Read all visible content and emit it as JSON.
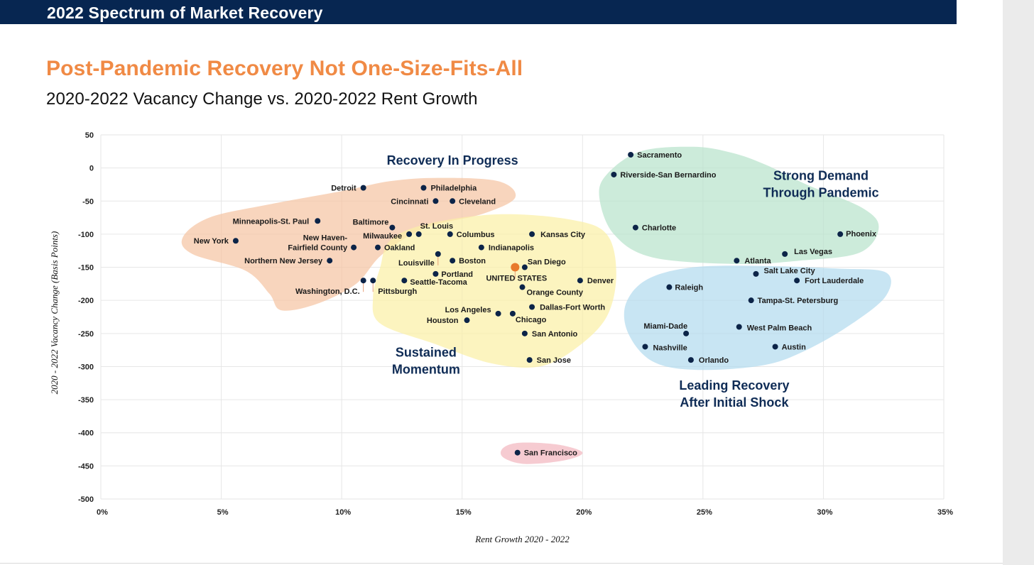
{
  "header": {
    "banner_title": "2022 Spectrum of Market Recovery",
    "headline": "Post-Pandemic Recovery Not One-Size-Fits-All",
    "subheadline": "2020-2022 Vacancy Change vs. 2020-2022 Rent Growth"
  },
  "colors": {
    "banner": "#072651",
    "headline": "#f08a45",
    "point": "#0c2448",
    "us_point": "#e87a2e",
    "region_text": "#0f2c56"
  },
  "chart_data": {
    "type": "scatter",
    "title": "2020-2022 Vacancy Change vs. 2020-2022 Rent Growth",
    "xlabel": "Rent Growth 2020 - 2022",
    "ylabel": "2020 - 2022 Vacancy Change (Basis Points)",
    "xlim": [
      0,
      35
    ],
    "ylim": [
      -500,
      50
    ],
    "x_ticks": [
      0,
      5,
      10,
      15,
      20,
      25,
      30,
      35
    ],
    "x_tick_labels": [
      "0%",
      "5%",
      "10%",
      "15%",
      "20%",
      "25%",
      "30%",
      "35%"
    ],
    "y_ticks": [
      50,
      0,
      -50,
      -100,
      -150,
      -200,
      -250,
      -300,
      -350,
      -400,
      -450,
      -500
    ],
    "y_tick_labels": [
      "50",
      "0",
      "-50",
      "-100",
      "-150",
      "-200",
      "-250",
      "-300",
      "-350",
      "-400",
      "-450",
      "-500"
    ],
    "grid": true,
    "regions": [
      {
        "name": "Recovery In Progress",
        "label_lines": [
          "Recovery In Progress"
        ],
        "color": "#f5c5a3"
      },
      {
        "name": "Sustained Momentum",
        "label_lines": [
          "Sustained",
          "Momentum"
        ],
        "color": "#fbf0a6"
      },
      {
        "name": "Strong Demand Through Pandemic",
        "label_lines": [
          "Strong Demand",
          "Through Pandemic"
        ],
        "color": "#b9e3cc"
      },
      {
        "name": "Leading Recovery After Initial Shock",
        "label_lines": [
          "Leading Recovery",
          "After Initial Shock"
        ],
        "color": "#b3dbee"
      },
      {
        "name": "San Francisco outlier",
        "label_lines": [],
        "color": "#f3b7bf"
      }
    ],
    "points": [
      {
        "name": "Detroit",
        "x": 10.9,
        "y": -30
      },
      {
        "name": "Philadelphia",
        "x": 13.4,
        "y": -30
      },
      {
        "name": "Cincinnati",
        "x": 13.9,
        "y": -50
      },
      {
        "name": "Cleveland",
        "x": 14.6,
        "y": -50
      },
      {
        "name": "Minneapolis-St. Paul",
        "x": 9.0,
        "y": -80
      },
      {
        "name": "Baltimore",
        "x": 12.1,
        "y": -90
      },
      {
        "name": "St. Louis",
        "x": 13.2,
        "y": -100
      },
      {
        "name": "Milwaukee",
        "x": 12.8,
        "y": -100
      },
      {
        "name": "New York",
        "x": 5.6,
        "y": -110
      },
      {
        "name": "New Haven-Fairfield County",
        "x": 10.5,
        "y": -120
      },
      {
        "name": "Oakland",
        "x": 11.5,
        "y": -120
      },
      {
        "name": "Columbus",
        "x": 14.5,
        "y": -100
      },
      {
        "name": "Kansas City",
        "x": 17.9,
        "y": -100
      },
      {
        "name": "Indianapolis",
        "x": 15.8,
        "y": -120
      },
      {
        "name": "Louisville",
        "x": 14.0,
        "y": -130
      },
      {
        "name": "Northern New Jersey",
        "x": 9.5,
        "y": -140
      },
      {
        "name": "Boston",
        "x": 14.6,
        "y": -140
      },
      {
        "name": "San Diego",
        "x": 17.6,
        "y": -150
      },
      {
        "name": "UNITED STATES",
        "x": 17.2,
        "y": -150,
        "highlight": true
      },
      {
        "name": "Portland",
        "x": 13.9,
        "y": -160
      },
      {
        "name": "Seattle-Tacoma",
        "x": 12.6,
        "y": -170
      },
      {
        "name": "Denver",
        "x": 19.9,
        "y": -170
      },
      {
        "name": "Washington, D.C.",
        "x": 10.9,
        "y": -170
      },
      {
        "name": "Pittsburgh",
        "x": 11.3,
        "y": -170
      },
      {
        "name": "Orange County",
        "x": 17.5,
        "y": -180
      },
      {
        "name": "Dallas-Fort Worth",
        "x": 17.9,
        "y": -210
      },
      {
        "name": "Los Angeles",
        "x": 16.5,
        "y": -220
      },
      {
        "name": "Chicago",
        "x": 17.1,
        "y": -220
      },
      {
        "name": "Houston",
        "x": 15.2,
        "y": -230
      },
      {
        "name": "San Antonio",
        "x": 17.6,
        "y": -250
      },
      {
        "name": "San Jose",
        "x": 17.8,
        "y": -290
      },
      {
        "name": "San Francisco",
        "x": 17.3,
        "y": -430
      },
      {
        "name": "Sacramento",
        "x": 22.0,
        "y": 20
      },
      {
        "name": "Riverside-San Bernardino",
        "x": 21.3,
        "y": -10
      },
      {
        "name": "Charlotte",
        "x": 22.2,
        "y": -90
      },
      {
        "name": "Phoenix",
        "x": 30.7,
        "y": -100
      },
      {
        "name": "Las Vegas",
        "x": 28.4,
        "y": -130
      },
      {
        "name": "Atlanta",
        "x": 26.4,
        "y": -140
      },
      {
        "name": "Salt Lake City",
        "x": 27.2,
        "y": -160
      },
      {
        "name": "Fort Lauderdale",
        "x": 28.9,
        "y": -170
      },
      {
        "name": "Raleigh",
        "x": 23.6,
        "y": -180
      },
      {
        "name": "Tampa-St. Petersburg",
        "x": 27.0,
        "y": -200
      },
      {
        "name": "Miami-Dade",
        "x": 24.3,
        "y": -250
      },
      {
        "name": "West Palm Beach",
        "x": 26.5,
        "y": -240
      },
      {
        "name": "Nashville",
        "x": 22.6,
        "y": -270
      },
      {
        "name": "Austin",
        "x": 28.0,
        "y": -270
      },
      {
        "name": "Orlando",
        "x": 24.5,
        "y": -290
      }
    ]
  }
}
